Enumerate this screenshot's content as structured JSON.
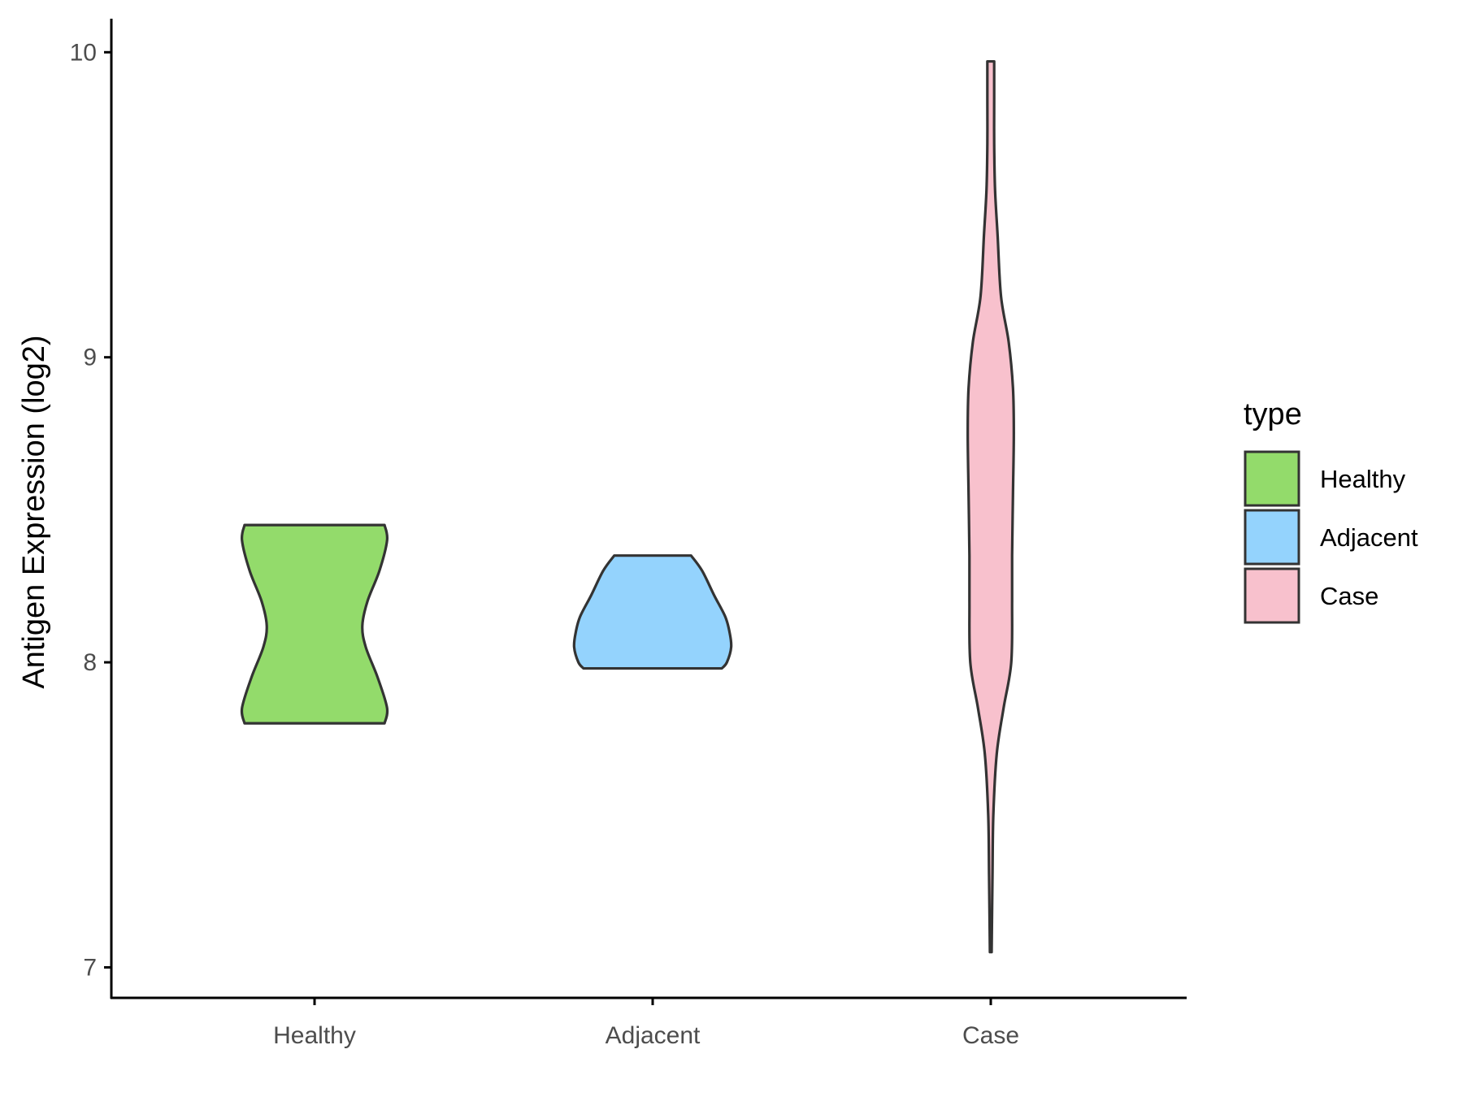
{
  "chart_data": {
    "type": "violin",
    "ylabel": "Antigen Expression (log2)",
    "xlabel": "",
    "ylim": [
      6.9,
      10.11
    ],
    "yticks": [
      7,
      8,
      9,
      10
    ],
    "categories": [
      "Healthy",
      "Adjacent",
      "Case"
    ],
    "legend": {
      "title": "type",
      "placement": "right",
      "entries": [
        "Healthy",
        "Adjacent",
        "Case"
      ]
    },
    "grid": false,
    "series": [
      {
        "name": "Healthy",
        "color": "#93db6b",
        "min": 7.8,
        "max": 8.45,
        "profile": [
          [
            7.8,
            0.82
          ],
          [
            7.85,
            0.85
          ],
          [
            7.95,
            0.74
          ],
          [
            8.05,
            0.6
          ],
          [
            8.12,
            0.56
          ],
          [
            8.2,
            0.62
          ],
          [
            8.3,
            0.76
          ],
          [
            8.4,
            0.85
          ],
          [
            8.45,
            0.82
          ]
        ]
      },
      {
        "name": "Adjacent",
        "color": "#94d3fd",
        "min": 7.98,
        "max": 8.35,
        "profile": [
          [
            7.98,
            0.81
          ],
          [
            8.0,
            0.87
          ],
          [
            8.05,
            0.92
          ],
          [
            8.1,
            0.9
          ],
          [
            8.15,
            0.85
          ],
          [
            8.22,
            0.72
          ],
          [
            8.3,
            0.58
          ],
          [
            8.35,
            0.45
          ]
        ]
      },
      {
        "name": "Case",
        "color": "#f8c1cd",
        "min": 7.05,
        "max": 9.97,
        "profile": [
          [
            7.05,
            0.01
          ],
          [
            7.3,
            0.02
          ],
          [
            7.5,
            0.03
          ],
          [
            7.7,
            0.07
          ],
          [
            7.85,
            0.15
          ],
          [
            8.0,
            0.24
          ],
          [
            8.2,
            0.25
          ],
          [
            8.35,
            0.25
          ],
          [
            8.55,
            0.26
          ],
          [
            8.75,
            0.27
          ],
          [
            8.9,
            0.26
          ],
          [
            9.05,
            0.21
          ],
          [
            9.2,
            0.12
          ],
          [
            9.4,
            0.08
          ],
          [
            9.55,
            0.05
          ],
          [
            9.7,
            0.04
          ],
          [
            9.85,
            0.04
          ],
          [
            9.97,
            0.04
          ]
        ]
      }
    ]
  }
}
